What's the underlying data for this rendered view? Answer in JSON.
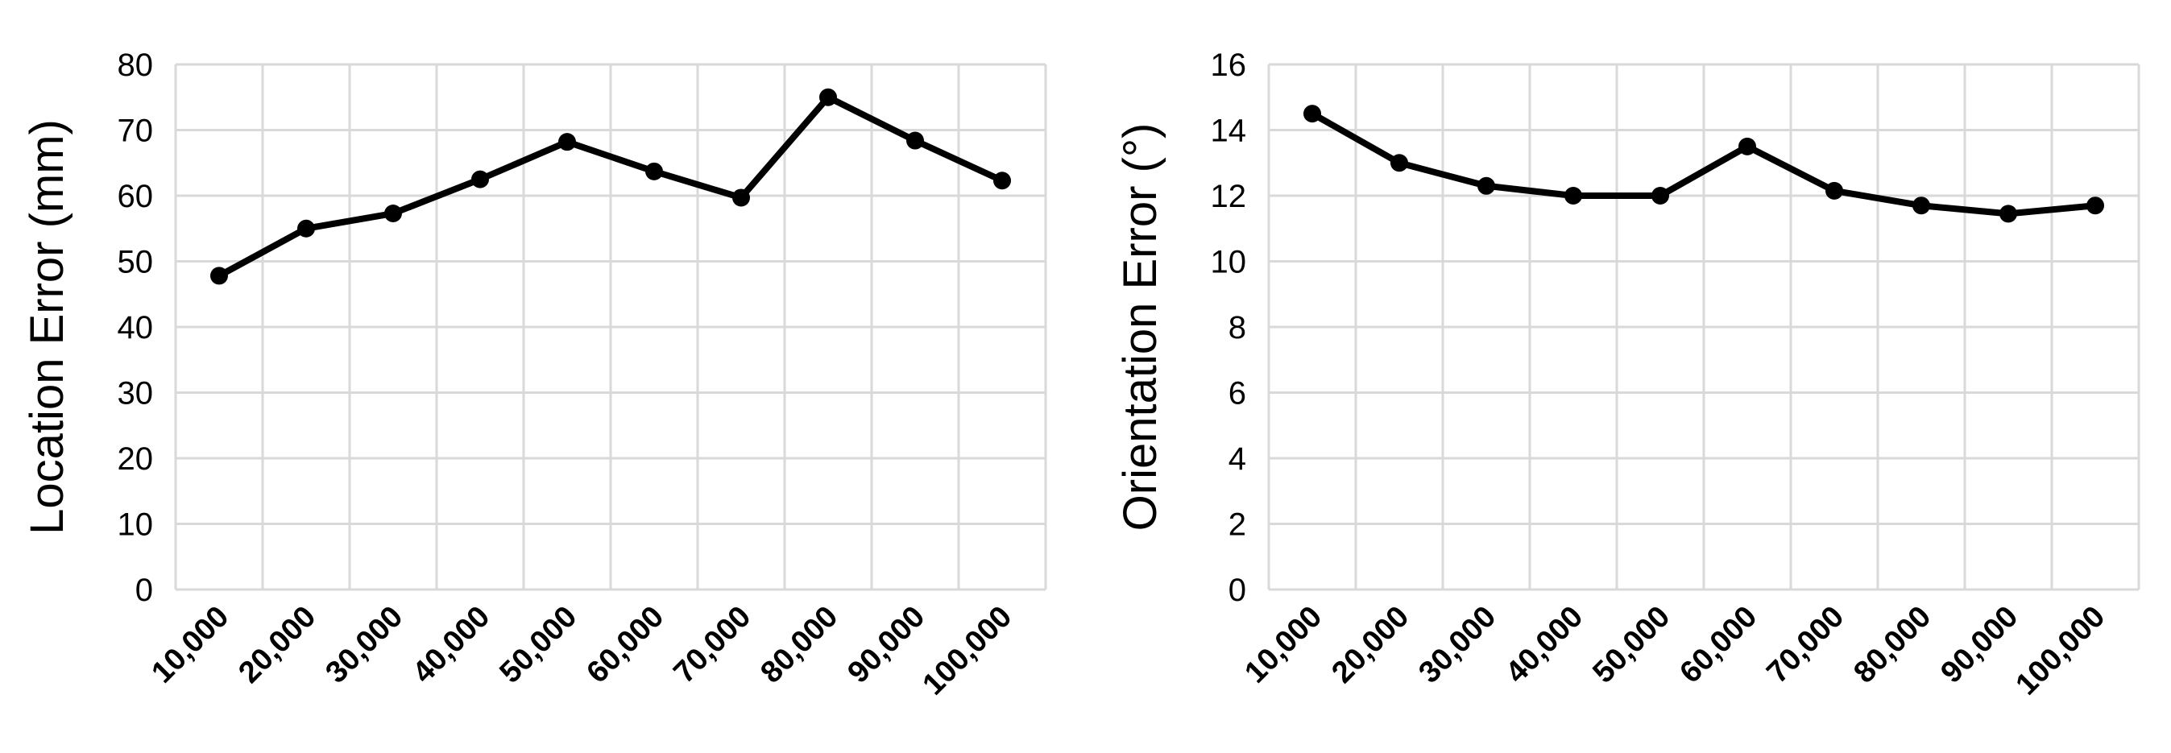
{
  "chart_data": [
    {
      "type": "line",
      "categories": [
        "10,000",
        "20,000",
        "30,000",
        "40,000",
        "50,000",
        "60,000",
        "70,000",
        "80,000",
        "90,000",
        "100,000"
      ],
      "series": [
        {
          "values": [
            47.8,
            55.0,
            57.3,
            62.5,
            68.2,
            63.7,
            59.7,
            75.0,
            68.4,
            62.3
          ]
        }
      ],
      "xlabel": "",
      "ylabel": "Location Error (mm)",
      "ylim": [
        0,
        80
      ],
      "yticks": [
        "0",
        "10",
        "20",
        "30",
        "40",
        "50",
        "60",
        "70",
        "80"
      ],
      "grid": true,
      "legend": "none",
      "line_color": "#000000",
      "grid_color": "#d9d9d9"
    },
    {
      "type": "line",
      "categories": [
        "10,000",
        "20,000",
        "30,000",
        "40,000",
        "50,000",
        "60,000",
        "70,000",
        "80,000",
        "90,000",
        "100,000"
      ],
      "series": [
        {
          "values": [
            14.5,
            13.0,
            12.3,
            12.0,
            12.0,
            13.5,
            12.15,
            11.7,
            11.45,
            11.7
          ]
        }
      ],
      "xlabel": "",
      "ylabel": "Orientation Error (°)",
      "ylim": [
        0,
        16
      ],
      "yticks": [
        "0",
        "2",
        "4",
        "6",
        "8",
        "10",
        "12",
        "14",
        "16"
      ],
      "grid": true,
      "legend": "none",
      "line_color": "#000000",
      "grid_color": "#d9d9d9"
    }
  ]
}
